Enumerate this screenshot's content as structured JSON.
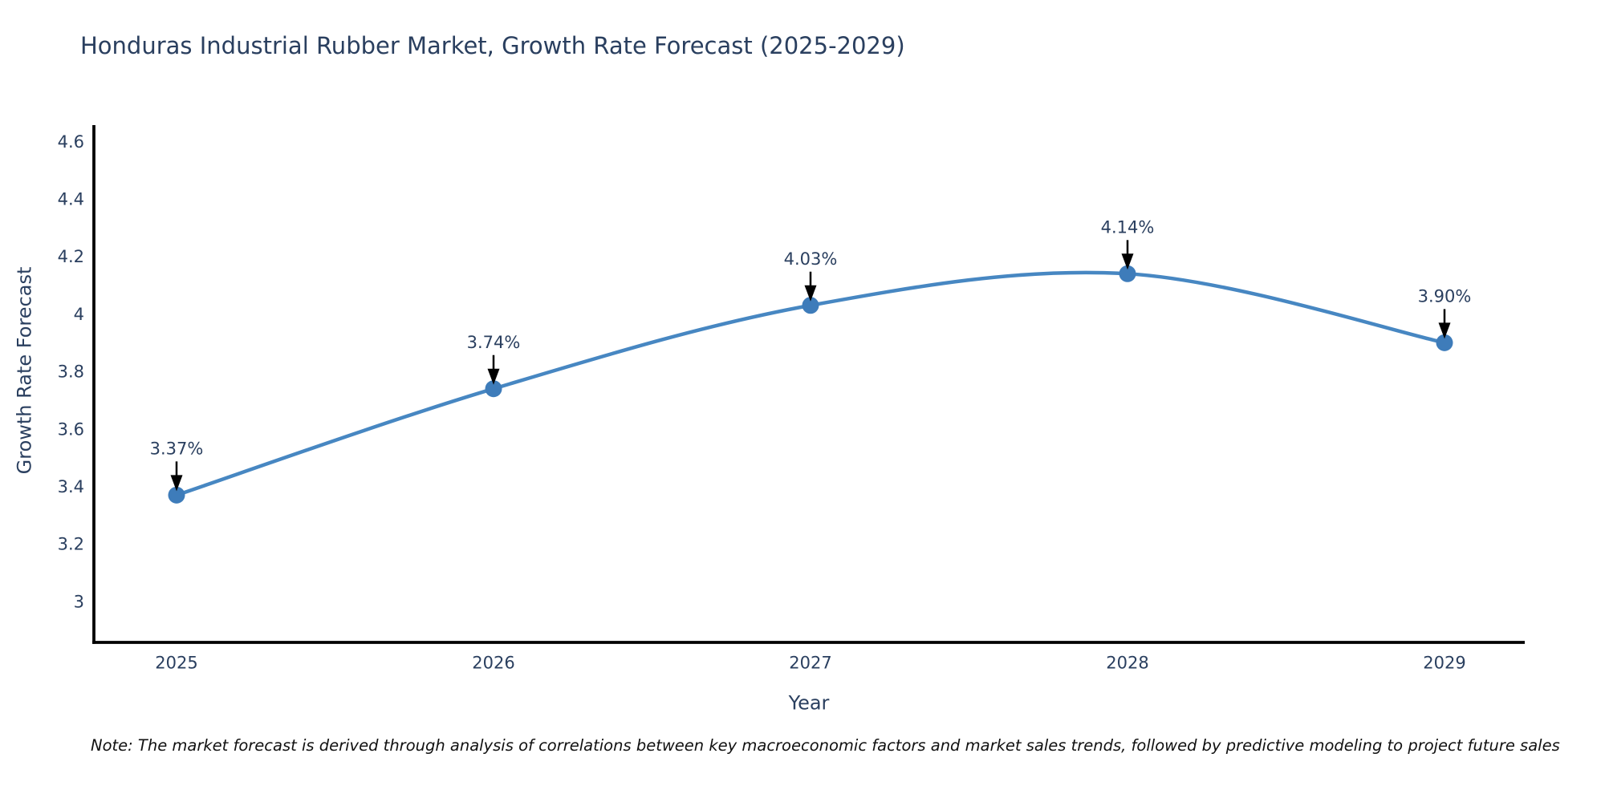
{
  "title": "Honduras Industrial Rubber Market, Growth Rate Forecast (2025-2029)",
  "note": "Note: The market forecast is derived through analysis of correlations between key macroeconomic factors and market sales trends, followed by predictive modeling to project future sales",
  "chart_data": {
    "type": "line",
    "line_shape": "spline",
    "grid": false,
    "legend": "none",
    "title": "Honduras Industrial Rubber Market, Growth Rate Forecast (2025-2029)",
    "xlabel": "Year",
    "ylabel": "Growth Rate Forecast",
    "x": [
      2025,
      2026,
      2027,
      2028,
      2029
    ],
    "xtick_labels": [
      "2025",
      "2026",
      "2027",
      "2028",
      "2029"
    ],
    "series": [
      {
        "name": "Growth Rate Forecast",
        "values": [
          3.37,
          3.74,
          4.03,
          4.14,
          3.9
        ]
      }
    ],
    "point_labels": [
      "3.37%",
      "3.74%",
      "4.03%",
      "4.14%",
      "3.90%"
    ],
    "yticks": [
      3,
      3.2,
      3.4,
      3.6,
      3.8,
      4,
      4.2,
      4.4,
      4.6
    ],
    "ytick_labels": [
      "3",
      "3.2",
      "3.4",
      "3.6",
      "3.8",
      "4",
      "4.2",
      "4.4",
      "4.6"
    ],
    "ylim": [
      2.86,
      4.65
    ],
    "colors": {
      "line": "#4787c2",
      "marker": "#3e7cba",
      "axis_line": "#000000",
      "text": "#2a3f5f",
      "annotation_arrow": "#000000",
      "note_text": "#111111",
      "background": "#ffffff"
    }
  }
}
